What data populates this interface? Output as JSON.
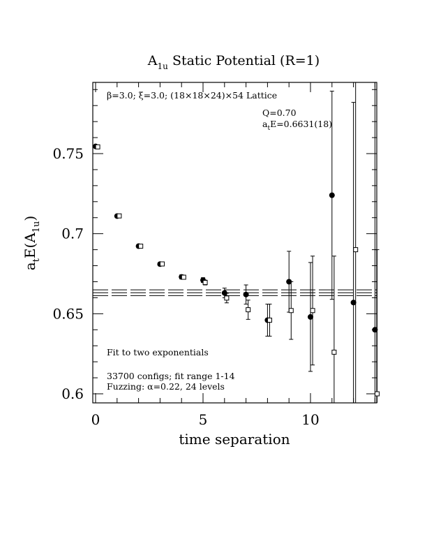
{
  "chart_data": {
    "type": "scatter",
    "title": "A",
    "title_sub": "1u",
    "title_rest": " Static Potential (R=1)",
    "xlabel": "time separation",
    "ylabel": "a",
    "ylabel_sub1": "t",
    "ylabel_mid": "E(A",
    "ylabel_sub2": "1u",
    "ylabel_end": ")",
    "xlim": [
      0,
      13
    ],
    "ylim": [
      0.595,
      0.795
    ],
    "x_ticks": [
      0,
      5,
      10
    ],
    "y_ticks": [
      0.6,
      0.65,
      0.7,
      0.75
    ],
    "x_tick_labels": [
      "0",
      "5",
      "10"
    ],
    "y_tick_labels": [
      "0.6",
      "0.65",
      "0.7",
      "0.75"
    ],
    "annotations": {
      "lattice": "β=3.0; ξ=3.0; (18×18×24)×54 Lattice",
      "q_value": "Q=0.70",
      "energy_prefix": "a",
      "energy_sub": "t",
      "energy_rest": "E=0.6631(18)",
      "fit_type": "Fit to two exponentials",
      "configs": "33700 configs; fit range 1-14",
      "fuzzing": "Fuzzing: α=0.22, 24 levels"
    },
    "fit": {
      "center": 0.6631,
      "error": 0.0018
    },
    "series": [
      {
        "marker": "filled-circle",
        "x": [
          0,
          1,
          2,
          3,
          4,
          5,
          6,
          7,
          8,
          9,
          10,
          11,
          12,
          13
        ],
        "y": [
          0.7545,
          0.711,
          0.6922,
          0.681,
          0.673,
          0.671,
          0.663,
          0.662,
          0.646,
          0.67,
          0.648,
          0.724,
          0.657,
          0.64
        ],
        "err": [
          0.0008,
          0.0008,
          0.001,
          0.001,
          0.0013,
          0.0015,
          0.003,
          0.006,
          0.01,
          0.019,
          0.034,
          0.065,
          0.125,
          0.16
        ]
      },
      {
        "marker": "open-square",
        "x": [
          0.1,
          1.1,
          2.1,
          3.1,
          4.1,
          5.1,
          6.1,
          7.1,
          8.1,
          9.1,
          10.1,
          11.1,
          12.1,
          13.1
        ],
        "y": [
          0.7542,
          0.7111,
          0.6922,
          0.6811,
          0.6728,
          0.6695,
          0.6598,
          0.6525,
          0.646,
          0.652,
          0.652,
          0.626,
          0.69,
          0.6
        ],
        "err": [
          0.0007,
          0.0008,
          0.001,
          0.001,
          0.0012,
          0.0015,
          0.003,
          0.006,
          0.01,
          0.018,
          0.034,
          0.06,
          0.12,
          0.09
        ]
      }
    ]
  }
}
